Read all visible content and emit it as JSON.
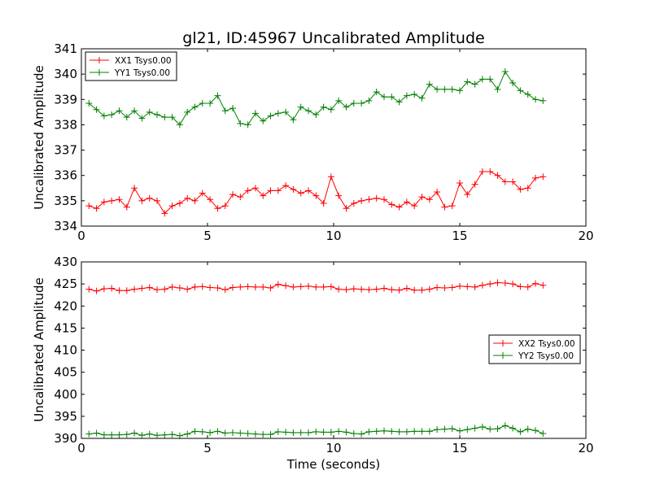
{
  "chart_data": [
    {
      "type": "line",
      "title": "gl21, ID:45967 Uncalibrated Amplitude",
      "xlabel": "",
      "ylabel": "Uncalibrated Amplitude",
      "xlim": [
        0,
        20
      ],
      "ylim": [
        334,
        341
      ],
      "xticks": [
        0,
        5,
        10,
        15,
        20
      ],
      "yticks": [
        334,
        335,
        336,
        337,
        338,
        339,
        340,
        341
      ],
      "legend_position": "top-left",
      "x": [
        0.3,
        0.6,
        0.9,
        1.2,
        1.5,
        1.8,
        2.1,
        2.4,
        2.7,
        3.0,
        3.3,
        3.6,
        3.9,
        4.2,
        4.5,
        4.8,
        5.1,
        5.4,
        5.7,
        6.0,
        6.3,
        6.6,
        6.9,
        7.2,
        7.5,
        7.8,
        8.1,
        8.4,
        8.7,
        9.0,
        9.3,
        9.6,
        9.9,
        10.2,
        10.5,
        10.8,
        11.1,
        11.4,
        11.7,
        12.0,
        12.3,
        12.6,
        12.9,
        13.2,
        13.5,
        13.8,
        14.1,
        14.4,
        14.7,
        15.0,
        15.3,
        15.6,
        15.9,
        16.2,
        16.5,
        16.8,
        17.1,
        17.4,
        17.7,
        18.0,
        18.3
      ],
      "series": [
        {
          "name": "XX1 Tsys0.00",
          "color": "#ff0000",
          "values": [
            334.8,
            334.7,
            334.95,
            335.0,
            335.05,
            334.75,
            335.5,
            335.0,
            335.1,
            335.0,
            334.5,
            334.8,
            334.9,
            335.1,
            335.0,
            335.3,
            335.05,
            334.7,
            334.8,
            335.25,
            335.15,
            335.4,
            335.5,
            335.2,
            335.4,
            335.4,
            335.6,
            335.45,
            335.3,
            335.4,
            335.2,
            334.9,
            335.95,
            335.2,
            334.7,
            334.9,
            335.0,
            335.05,
            335.1,
            335.05,
            334.85,
            334.75,
            334.95,
            334.8,
            335.15,
            335.05,
            335.35,
            334.75,
            334.8,
            335.7,
            335.25,
            335.65,
            336.15,
            336.15,
            336.0,
            335.75,
            335.75,
            335.45,
            335.5,
            335.9,
            335.95
          ]
        },
        {
          "name": "YY1 Tsys0.00",
          "color": "#008000",
          "values": [
            338.85,
            338.6,
            338.35,
            338.4,
            338.55,
            338.3,
            338.55,
            338.25,
            338.5,
            338.4,
            338.3,
            338.3,
            338.0,
            338.5,
            338.7,
            338.85,
            338.85,
            339.15,
            338.55,
            338.65,
            338.05,
            338.0,
            338.45,
            338.15,
            338.35,
            338.45,
            338.5,
            338.2,
            338.7,
            338.55,
            338.4,
            338.7,
            338.6,
            338.95,
            338.7,
            338.85,
            338.85,
            338.95,
            339.3,
            339.1,
            339.1,
            338.9,
            339.15,
            339.2,
            339.05,
            339.6,
            339.4,
            339.4,
            339.4,
            339.35,
            339.7,
            339.6,
            339.8,
            339.8,
            339.4,
            340.1,
            339.65,
            339.35,
            339.2,
            339.0,
            338.95
          ]
        }
      ]
    },
    {
      "type": "line",
      "title": "",
      "xlabel": "Time (seconds)",
      "ylabel": "Uncalibrated Amplitude",
      "xlim": [
        0,
        20
      ],
      "ylim": [
        390,
        430
      ],
      "xticks": [
        0,
        5,
        10,
        15,
        20
      ],
      "yticks": [
        390,
        395,
        400,
        405,
        410,
        415,
        420,
        425,
        430
      ],
      "legend_position": "center-right",
      "x": [
        0.3,
        0.6,
        0.9,
        1.2,
        1.5,
        1.8,
        2.1,
        2.4,
        2.7,
        3.0,
        3.3,
        3.6,
        3.9,
        4.2,
        4.5,
        4.8,
        5.1,
        5.4,
        5.7,
        6.0,
        6.3,
        6.6,
        6.9,
        7.2,
        7.5,
        7.8,
        8.1,
        8.4,
        8.7,
        9.0,
        9.3,
        9.6,
        9.9,
        10.2,
        10.5,
        10.8,
        11.1,
        11.4,
        11.7,
        12.0,
        12.3,
        12.6,
        12.9,
        13.2,
        13.5,
        13.8,
        14.1,
        14.4,
        14.7,
        15.0,
        15.3,
        15.6,
        15.9,
        16.2,
        16.5,
        16.8,
        17.1,
        17.4,
        17.7,
        18.0,
        18.3
      ],
      "series": [
        {
          "name": "XX2 Tsys0.00",
          "color": "#ff0000",
          "values": [
            423.8,
            423.4,
            423.9,
            424.0,
            423.5,
            423.5,
            423.8,
            424.0,
            424.2,
            423.7,
            423.8,
            424.3,
            424.1,
            423.8,
            424.3,
            424.4,
            424.2,
            424.1,
            423.7,
            424.2,
            424.3,
            424.4,
            424.3,
            424.3,
            424.1,
            424.9,
            424.6,
            424.3,
            424.4,
            424.5,
            424.3,
            424.3,
            424.4,
            423.8,
            423.7,
            423.9,
            423.8,
            423.7,
            423.8,
            424.0,
            423.7,
            423.6,
            424.0,
            423.6,
            423.6,
            423.8,
            424.2,
            424.1,
            424.2,
            424.5,
            424.4,
            424.3,
            424.7,
            425.0,
            425.3,
            425.2,
            425.0,
            424.4,
            424.3,
            425.1,
            424.7
          ]
        },
        {
          "name": "YY2 Tsys0.00",
          "color": "#008000",
          "values": [
            391.0,
            391.2,
            390.8,
            390.8,
            390.8,
            390.9,
            391.2,
            390.7,
            391.0,
            390.7,
            390.8,
            390.9,
            390.6,
            391.0,
            391.6,
            391.5,
            391.3,
            391.6,
            391.2,
            391.3,
            391.2,
            391.1,
            391.0,
            390.9,
            390.9,
            391.5,
            391.4,
            391.3,
            391.3,
            391.3,
            391.5,
            391.4,
            391.4,
            391.6,
            391.4,
            391.1,
            391.0,
            391.5,
            391.6,
            391.7,
            391.6,
            391.5,
            391.5,
            391.6,
            391.6,
            391.6,
            392.0,
            392.1,
            392.2,
            391.7,
            392.0,
            392.3,
            392.6,
            392.1,
            392.2,
            392.9,
            392.3,
            391.5,
            392.1,
            391.8,
            391.1
          ]
        }
      ]
    }
  ]
}
